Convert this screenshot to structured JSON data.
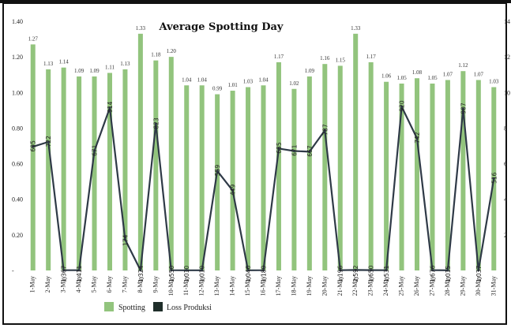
{
  "chart_data": {
    "type": "bar",
    "title": "Average Spotting Day",
    "categories": [
      "1-May",
      "2-May",
      "3-May",
      "4-May",
      "5-May",
      "6-May",
      "7-May",
      "8-May",
      "9-May",
      "10-May",
      "11-May",
      "12-May",
      "13-May",
      "14-May",
      "15-May",
      "16-May",
      "17-May",
      "18-May",
      "19-May",
      "20-May",
      "21-May",
      "22-May",
      "23-May",
      "24-May",
      "25-May",
      "26-May",
      "27-May",
      "28-May",
      "29-May",
      "30-May",
      "31-May"
    ],
    "series": [
      {
        "name": "Spotting",
        "type": "bar",
        "axis": "left",
        "color": "#92c47d",
        "values": [
          1.27,
          1.13,
          1.14,
          1.09,
          1.09,
          1.11,
          1.13,
          1.33,
          1.18,
          1.2,
          1.04,
          1.04,
          0.99,
          1.01,
          1.03,
          1.04,
          1.17,
          1.02,
          1.09,
          1.16,
          1.15,
          1.33,
          1.17,
          1.06,
          1.05,
          1.08,
          1.05,
          1.07,
          1.12,
          1.07,
          1.03
        ],
        "labels": [
          "1.27",
          "1.13",
          "1.14",
          "1.09",
          "1.09",
          "1.11",
          "1.13",
          "1.33",
          "1.18",
          "1.20",
          "1.04",
          "1.04",
          "0.99",
          "1.01",
          "1.03",
          "1.04",
          "1.17",
          "1.02",
          "1.09",
          "1.16",
          "1.15",
          "1.33",
          "1.17",
          "1.06",
          "1.05",
          "1.08",
          "1.05",
          "1.07",
          "1.12",
          "1.07",
          "1.03"
        ]
      },
      {
        "name": "Loss Produksi",
        "type": "line",
        "axis": "right",
        "color": "#2f3a47",
        "values": [
          695,
          722,
          1.367,
          1.411,
          671,
          914,
          174,
          1.324,
          823,
          1.55,
          1.01,
          1.01,
          559,
          449,
          1.046,
          1.18,
          685,
          671,
          667,
          787,
          1.196,
          2.592,
          1.65,
          1.531,
          920,
          742,
          1.676,
          1.015,
          907,
          1.037,
          516
        ],
        "labels": [
          "695",
          "722",
          "1.367",
          "1.411",
          "671",
          "914",
          "174",
          "1.324",
          "823",
          "1.550",
          "1.010",
          "1.010",
          "559",
          "449",
          "1.046",
          "1.180",
          "685",
          "671",
          "667",
          "787",
          "1.196",
          "2.592",
          "1.650",
          "1.531",
          "920",
          "742",
          "1.676",
          "1.015",
          "907",
          "1.037",
          "516"
        ]
      }
    ],
    "y_left": {
      "ylim": [
        0,
        1.4
      ],
      "ticks": [
        "-",
        "0.20",
        "0.40",
        "0.60",
        "0.80",
        "1.00",
        "1.20",
        "1.40"
      ]
    },
    "y_right": {
      "ylim": [
        0,
        1400
      ],
      "ticks": [
        "",
        "2",
        "4",
        "6",
        "8",
        "10",
        "12",
        "14"
      ]
    },
    "legend": {
      "position": "bottom",
      "entries": [
        "Spotting",
        "Loss Produksi"
      ]
    },
    "grid": false
  }
}
